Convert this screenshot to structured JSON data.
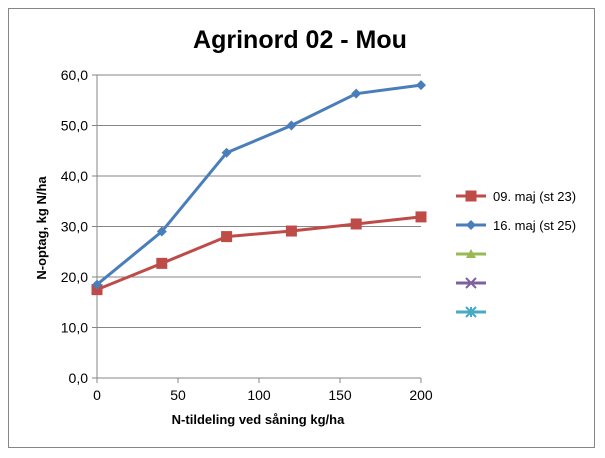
{
  "chart_data": {
    "type": "line",
    "title": "Agrinord 02 - Mou",
    "xlabel": "N-tildeling ved såning kg/ha",
    "ylabel": "N-optag, kg N/ha",
    "xlim": [
      0,
      200
    ],
    "ylim": [
      0,
      60
    ],
    "x_ticks": [
      "0",
      "50",
      "100",
      "150",
      "200"
    ],
    "y_ticks": [
      "0,0",
      "10,0",
      "20,0",
      "30,0",
      "40,0",
      "50,0",
      "60,0"
    ],
    "grid": "horizontal",
    "legend_position": "right",
    "series": [
      {
        "name": "09. maj (st 23)",
        "color": "#be4b48",
        "marker": "square",
        "x": [
          0,
          40,
          80,
          120,
          160,
          200
        ],
        "values": [
          17.5,
          22.7,
          28.0,
          29.1,
          30.5,
          31.9
        ]
      },
      {
        "name": "16. maj (st 25)",
        "color": "#4a7ebb",
        "marker": "diamond",
        "x": [
          0,
          40,
          80,
          120,
          160,
          200
        ],
        "values": [
          18.5,
          29.0,
          44.6,
          50.0,
          56.3,
          58.0
        ]
      },
      {
        "name": "",
        "color": "#98b954",
        "marker": "triangle",
        "x": [],
        "values": []
      },
      {
        "name": "",
        "color": "#7d60a0",
        "marker": "x",
        "x": [],
        "values": []
      },
      {
        "name": "",
        "color": "#46aac5",
        "marker": "star",
        "x": [],
        "values": []
      }
    ]
  }
}
